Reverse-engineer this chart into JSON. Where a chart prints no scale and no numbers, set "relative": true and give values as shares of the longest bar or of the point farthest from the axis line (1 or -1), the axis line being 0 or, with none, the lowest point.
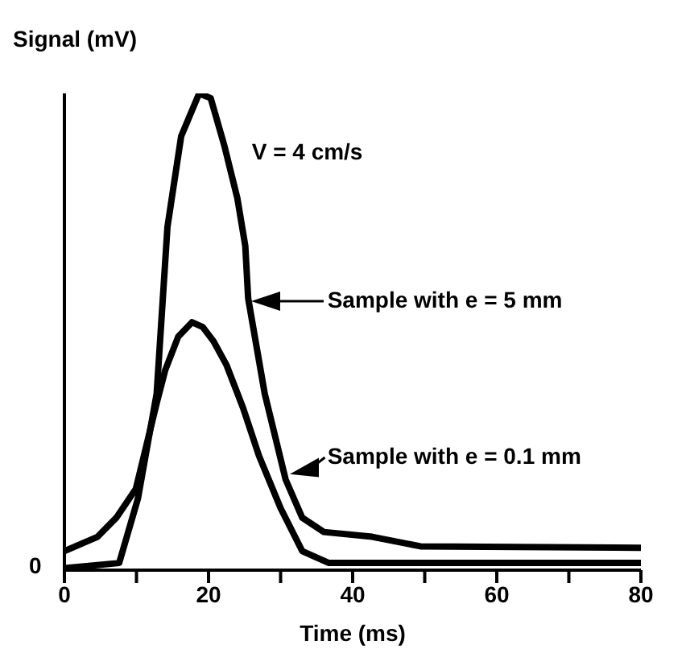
{
  "chart_data": {
    "type": "line",
    "relative": true,
    "ylabel": "Signal (mV)",
    "xlabel": "Time (ms)",
    "xlim": [
      0,
      80
    ],
    "xticks": [
      0,
      {
        "value": 10,
        "label": null
      },
      20,
      {
        "value": 30,
        "label": null
      },
      40,
      {
        "value": 50,
        "label": null
      },
      60,
      {
        "value": 70,
        "label": null
      },
      80
    ],
    "grid": false,
    "legend": "right",
    "marker": "none",
    "line_style": "solid",
    "annotations": [
      "V = 4 cm/s",
      "0"
    ],
    "series": [
      {
        "name": "Sample with e = 5 mm",
        "color": "#000000",
        "x": [
          0,
          7.6,
          10.2,
          12.8,
          14.3,
          16.2,
          18.7,
          20.3,
          22.2,
          24.0,
          25.1,
          25.5,
          27.8,
          30.7,
          33.0,
          36.0,
          42.7,
          49.4,
          80
        ],
        "values": [
          0.004,
          0.015,
          0.15,
          0.37,
          0.72,
          0.91,
          1.0,
          0.99,
          0.89,
          0.78,
          0.68,
          0.57,
          0.37,
          0.19,
          0.11,
          0.08,
          0.07,
          0.05,
          0.047
        ]
      },
      {
        "name": "Sample with e = 0.1 mm",
        "color": "#000000",
        "x": [
          0,
          4.6,
          7.2,
          9.9,
          12.8,
          14,
          15.8,
          17.7,
          19.2,
          20.7,
          22.5,
          24.8,
          27,
          30,
          33,
          36.7,
          80
        ],
        "values": [
          0.04,
          0.07,
          0.11,
          0.17,
          0.35,
          0.42,
          0.49,
          0.52,
          0.51,
          0.48,
          0.43,
          0.34,
          0.24,
          0.13,
          0.04,
          0.015,
          0.015
        ]
      }
    ]
  }
}
